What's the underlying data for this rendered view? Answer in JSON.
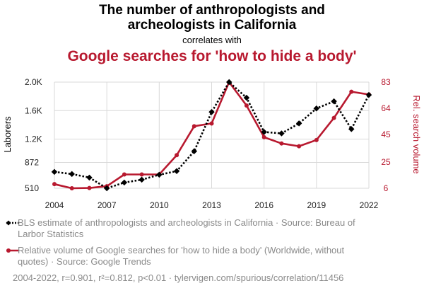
{
  "header": {
    "title_line1": "The number of anthropologists and",
    "title_line2": "archeologists in California",
    "connector": "correlates with",
    "title_variable2": "Google searches for 'how to hide a body'"
  },
  "legend": {
    "series1": "BLS estimate of anthropologists and archeologists in California · Source: Bureau of Larbor Statistics",
    "series2": "Relative volume of Google searches for 'how to hide a body' (Worldwide, without quotes) · Source: Google Trends"
  },
  "footer": "2004-2022, r=0.901, r²=0.812, p<0.01 · tylervigen.com/spurious/correlation/11456",
  "colors": {
    "series1": "#000000",
    "series2": "#b8192f",
    "grid": "#d9d9d9"
  },
  "chart_data": {
    "type": "line",
    "title": "The number of anthropologists and archeologists in California correlates with Google searches for 'how to hide a body'",
    "xlabel": "",
    "ylabel_left": "Laborers",
    "ylabel_right": "Rel. search volume",
    "x": [
      2004,
      2005,
      2006,
      2007,
      2008,
      2009,
      2010,
      2011,
      2012,
      2013,
      2014,
      2015,
      2016,
      2017,
      2018,
      2019,
      2020,
      2021,
      2022
    ],
    "x_ticks": [
      "2004",
      "2007",
      "2010",
      "2013",
      "2016",
      "2019",
      "2022"
    ],
    "x_tick_values": [
      2004,
      2007,
      2010,
      2013,
      2016,
      2019,
      2022
    ],
    "y_left_ticks": [
      "2.0K",
      "1.6K",
      "1.2K",
      "872",
      "510"
    ],
    "y_left_tick_values": [
      2000,
      1600,
      1200,
      872,
      510
    ],
    "y_left_range": [
      510,
      2000
    ],
    "y_right_ticks": [
      "83",
      "64",
      "45",
      "25",
      "6"
    ],
    "y_right_tick_values": [
      83,
      64,
      45,
      25,
      6
    ],
    "y_right_range": [
      6,
      83
    ],
    "series": [
      {
        "name": "BLS estimate of anthropologists and archeologists in California",
        "axis": "left",
        "style": "dotted",
        "marker": "diamond",
        "values": [
          740,
          710,
          660,
          510,
          590,
          630,
          700,
          750,
          1030,
          1580,
          2000,
          1780,
          1300,
          1280,
          1420,
          1630,
          1730,
          1340,
          1820
        ]
      },
      {
        "name": "Google searches for 'how to hide a body'",
        "axis": "right",
        "style": "solid",
        "marker": "circle",
        "values": [
          9,
          6,
          6.2,
          7.5,
          16,
          16,
          16,
          30,
          51,
          53,
          83,
          66,
          43,
          38.5,
          36.5,
          41,
          57,
          76,
          74
        ]
      }
    ]
  }
}
